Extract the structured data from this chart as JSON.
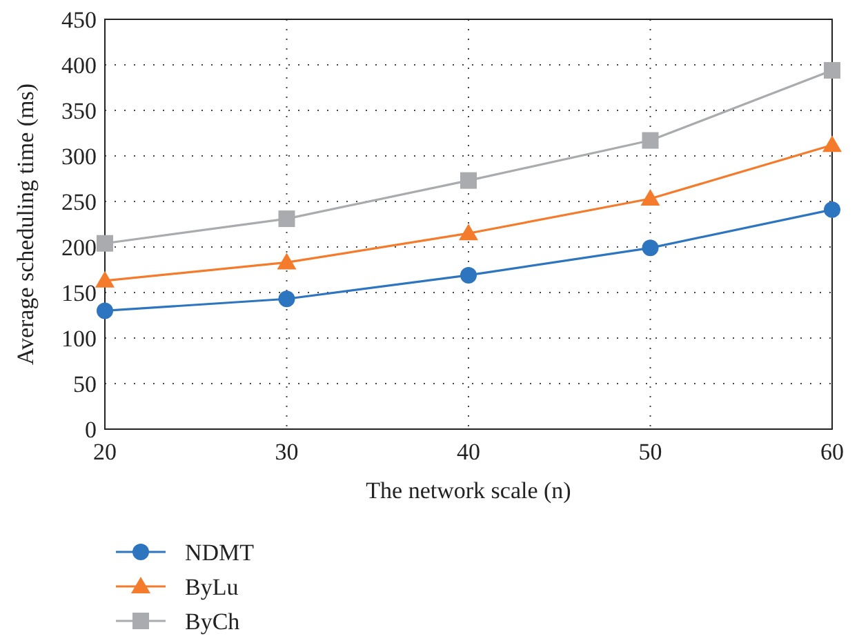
{
  "chart_data": {
    "type": "line",
    "xlabel": "The network scale (n)",
    "ylabel": "Average scheduling time (ms)",
    "x": [
      20,
      30,
      40,
      50,
      60
    ],
    "xlim": [
      20,
      60
    ],
    "xticks": [
      20,
      30,
      40,
      50,
      60
    ],
    "ylim": [
      0,
      450
    ],
    "yticks": [
      0,
      50,
      100,
      150,
      200,
      250,
      300,
      350,
      400,
      450
    ],
    "grid": true,
    "legend": "bottom left",
    "line_style": "solid",
    "series": [
      {
        "name": "NDMT",
        "color": "#2e75c0",
        "marker": "circle",
        "values": [
          130,
          143,
          169,
          199,
          241
        ]
      },
      {
        "name": "ByLu",
        "color": "#f47b2b",
        "marker": "triangle",
        "values": [
          163,
          183,
          215,
          253,
          312
        ]
      },
      {
        "name": "ByCh",
        "color": "#a9abae",
        "marker": "square",
        "values": [
          204,
          231,
          273,
          317,
          394
        ]
      }
    ]
  }
}
